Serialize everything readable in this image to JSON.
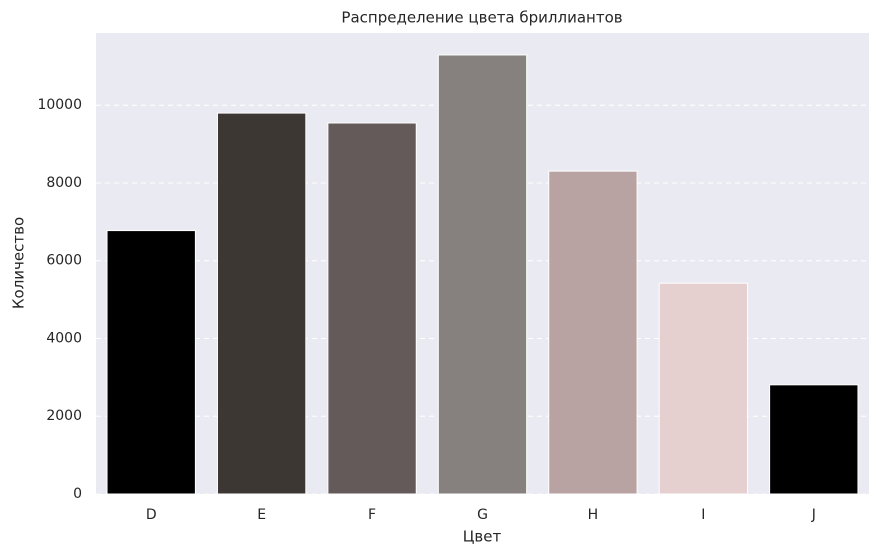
{
  "chart_data": {
    "type": "bar",
    "title": "Распределение цвета бриллиантов",
    "x_label": "Цвет",
    "y_label": "Количество",
    "categories": [
      "D",
      "E",
      "F",
      "G",
      "H",
      "I",
      "J"
    ],
    "values": [
      6775,
      9797,
      9542,
      11292,
      8304,
      5422,
      2808
    ],
    "colors": [
      "#000000",
      "#3d3734",
      "#655a5a",
      "#86807e",
      "#b9a3a2",
      "#e6d0cf",
      "#000000"
    ],
    "ylim": [
      0,
      11857
    ],
    "yticks": [
      0,
      2000,
      4000,
      6000,
      8000,
      10000
    ],
    "grid": true
  }
}
